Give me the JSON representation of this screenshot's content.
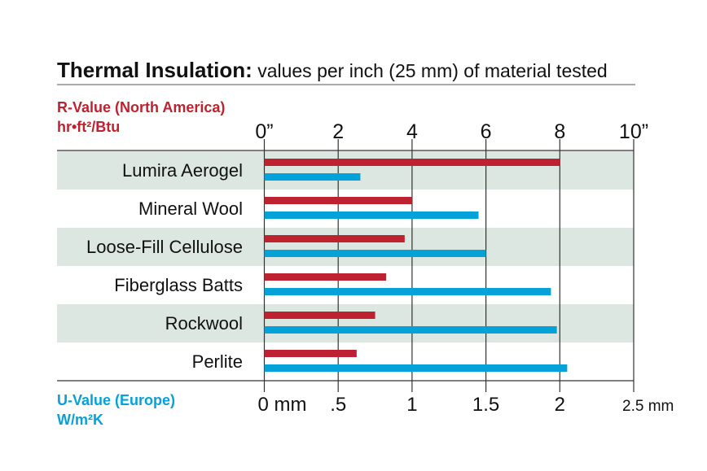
{
  "chart_data": {
    "type": "bar",
    "orientation": "horizontal",
    "title": "Thermal Insulation:",
    "subtitle": "values per inch (25 mm) of material tested",
    "categories": [
      "Lumira Aerogel",
      "Mineral Wool",
      "Loose-Fill Cellulose",
      "Fiberglass Batts",
      "Rockwool",
      "Perlite"
    ],
    "series": [
      {
        "name": "R-Value (North America)",
        "unit": "hr•ft²/Btu",
        "color": "#be2230",
        "axis": "top",
        "values": [
          8.0,
          4.0,
          3.8,
          3.3,
          3.0,
          2.5
        ]
      },
      {
        "name": "U-Value (Europe)",
        "unit": "W/m²K",
        "color": "#04a2d8",
        "axis": "bottom",
        "values": [
          0.65,
          1.45,
          1.5,
          1.94,
          1.98,
          2.05
        ]
      }
    ],
    "top_axis": {
      "range": [
        0,
        10
      ],
      "ticks": [
        0,
        2,
        4,
        6,
        8,
        10
      ],
      "tick_labels": [
        "0”",
        "2",
        "4",
        "6",
        "8",
        "10”"
      ]
    },
    "bottom_axis": {
      "range": [
        0,
        2.5
      ],
      "ticks": [
        0,
        0.5,
        1,
        1.5,
        2,
        2.5
      ],
      "tick_labels": [
        "0 mm",
        ".5",
        "1",
        "1.5",
        "2",
        "2.5 mm"
      ]
    },
    "grid": true,
    "row_shading_color": "#dde7e1"
  }
}
